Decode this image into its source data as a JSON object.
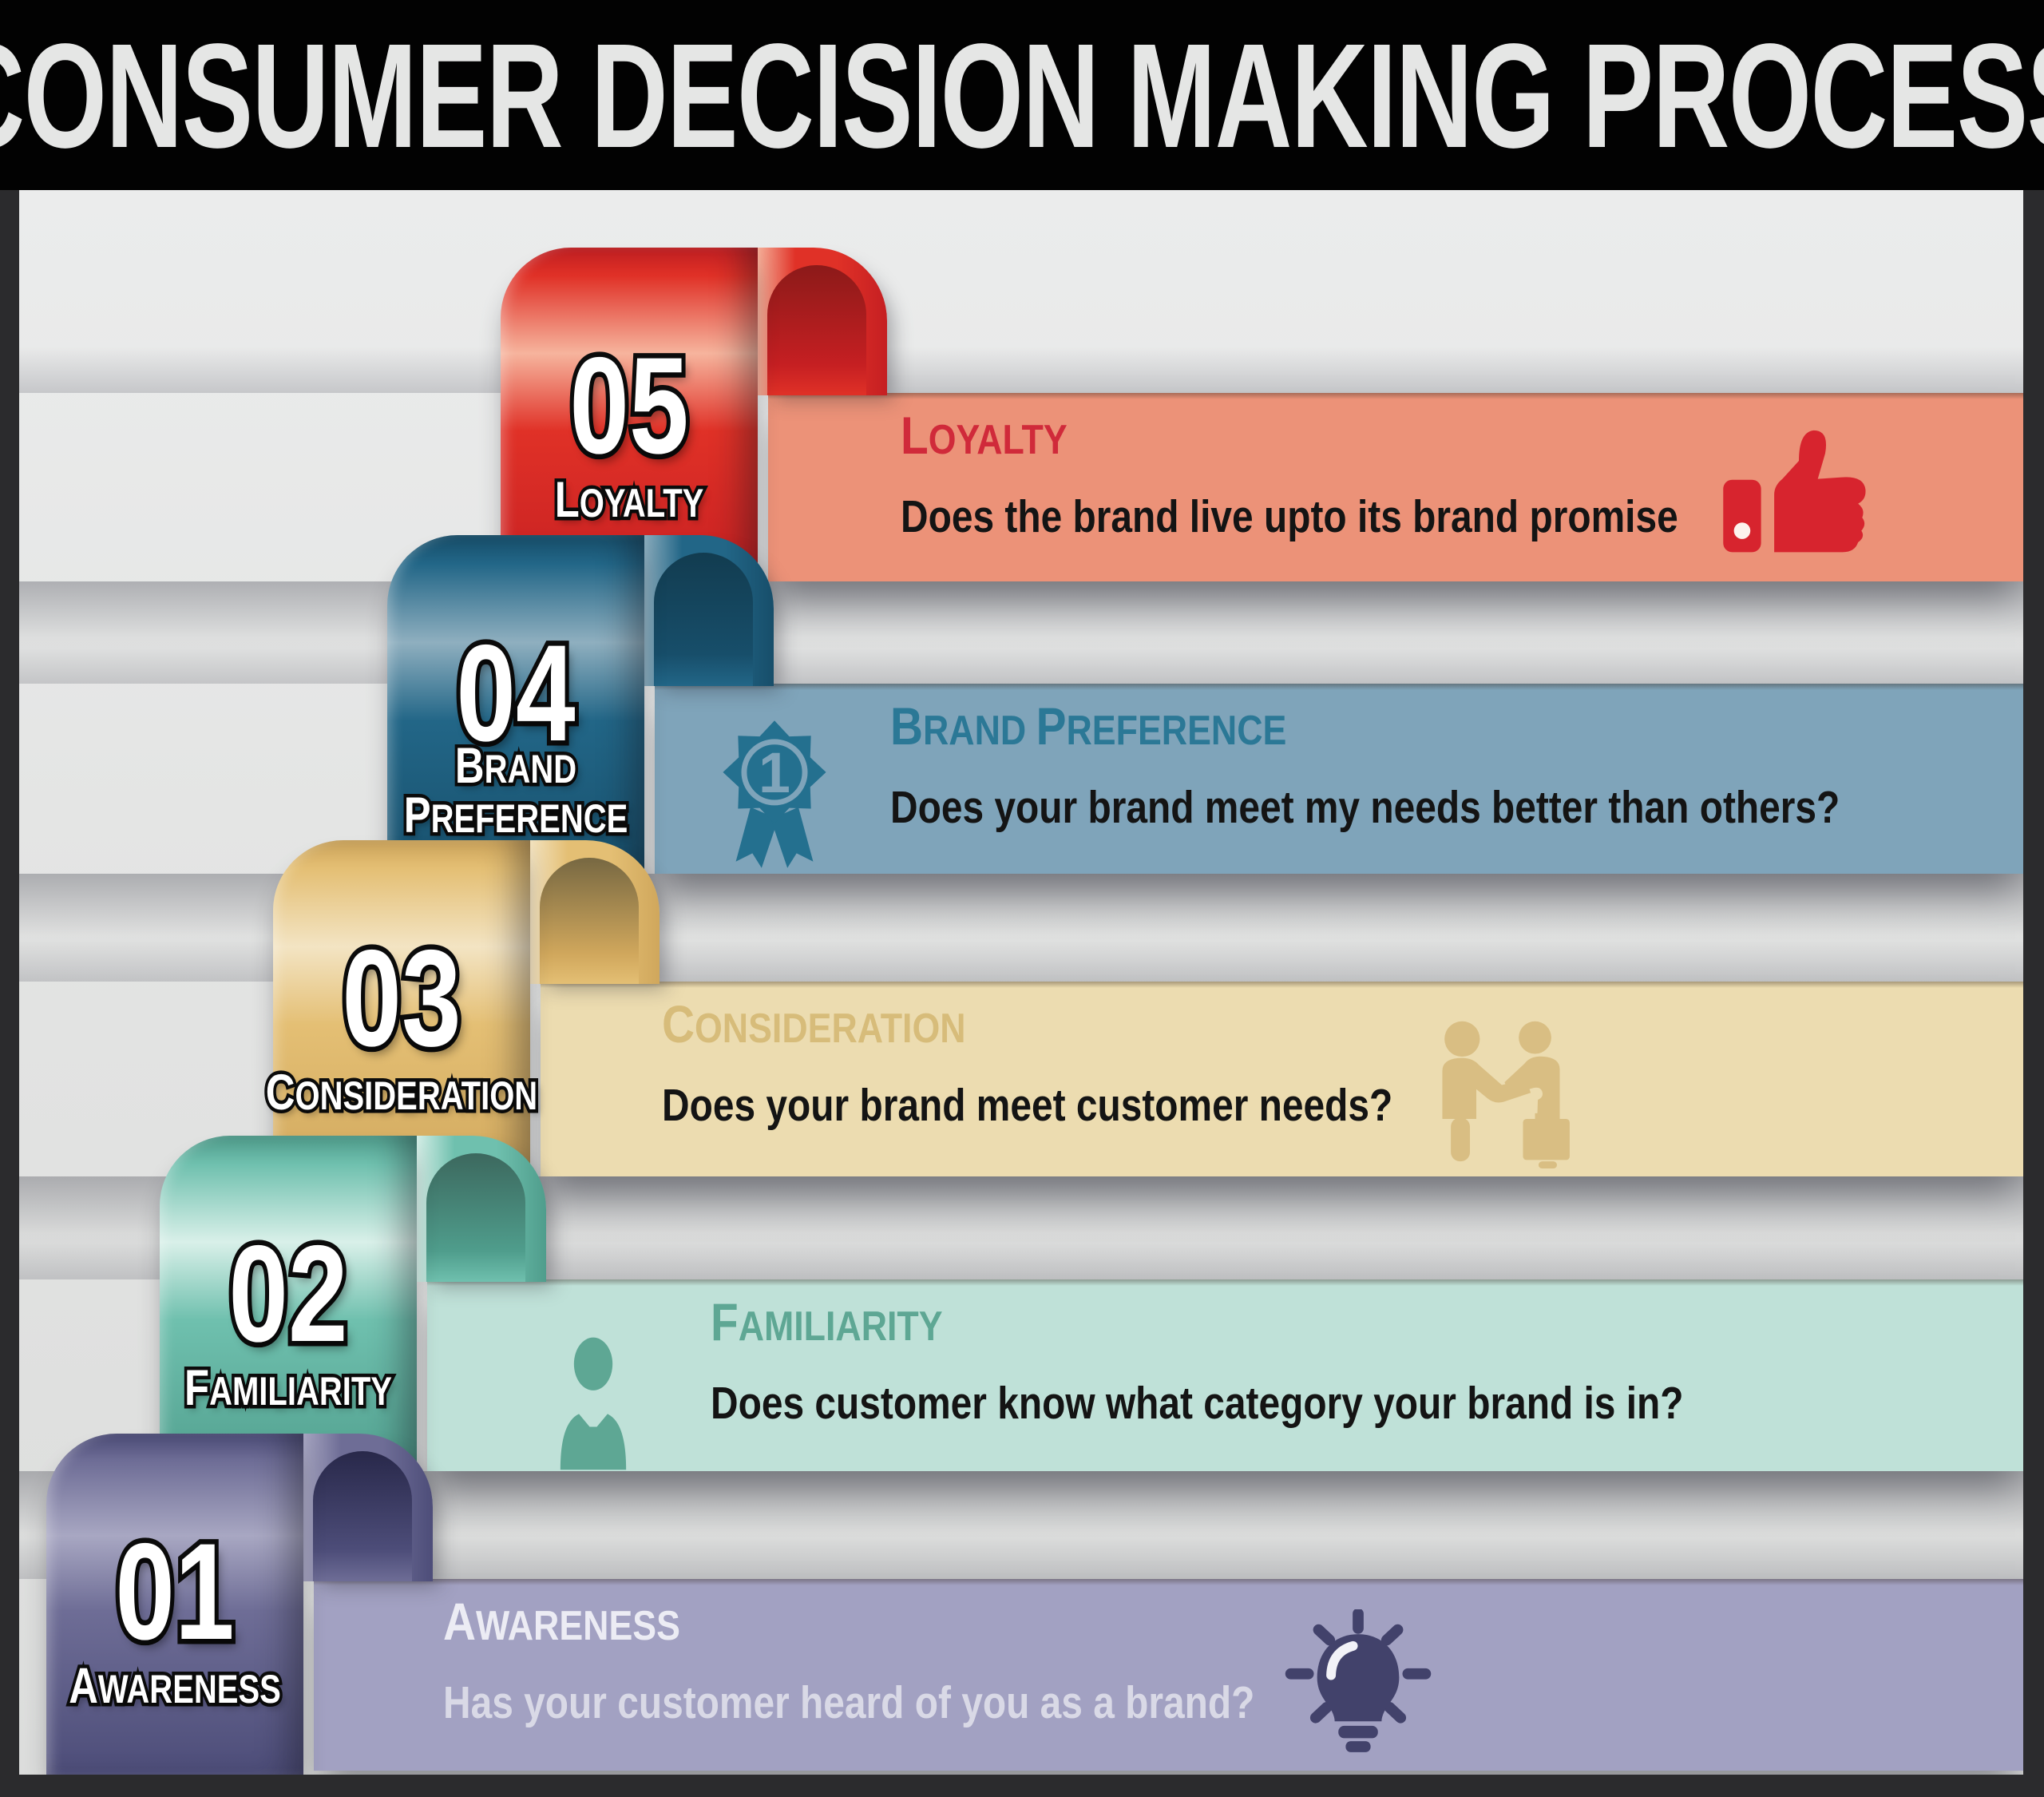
{
  "header": {
    "title": "Consumer Decision Making Process"
  },
  "frame": {
    "bar_color": "#020202",
    "border_color": "#2b2b2d",
    "background": "#e3e4e3"
  },
  "steps": [
    {
      "number": "01",
      "tab_label": "Awareness",
      "title": "Awareness",
      "description": "Has your customer heard of you as a brand?",
      "icon": "lightbulb-icon",
      "colors": {
        "main": "#6e6d96",
        "light": "#a8a7c2",
        "deep": "#4d4d79",
        "dark": "#28284a",
        "banner": "#a2a1c2",
        "title": "#ececf4",
        "subtitle": "#d9d9e6",
        "icon": "#42426b"
      }
    },
    {
      "number": "02",
      "tab_label": "Familiarity",
      "title": "Familiarity",
      "description": "Does customer know what category your brand is in?",
      "icon": "person-icon",
      "colors": {
        "main": "#6fc0ae",
        "light": "#d9f0e9",
        "deep": "#4f9d8c",
        "dark": "#3c685e",
        "banner": "#bfe1d8",
        "title": "#5ea794",
        "subtitle": "#141414",
        "icon": "#5ea794"
      }
    },
    {
      "number": "03",
      "tab_label": "Consideration",
      "title": "Consideration",
      "description": "Does your brand meet customer needs?",
      "icon": "handshake-icon",
      "colors": {
        "main": "#e4bf74",
        "light": "#f3e4c3",
        "deep": "#d0a75c",
        "dark": "#776842",
        "banner": "#ecdcb0",
        "title": "#d7bc7a",
        "subtitle": "#141414",
        "icon": "#d9be83"
      }
    },
    {
      "number": "04",
      "tab_label": "Brand\nPreference",
      "title": "Brand Preference",
      "description": "Does your brand meet my needs better than others?",
      "icon": "medal-icon",
      "colors": {
        "main": "#226687",
        "light": "#8fafbf",
        "deep": "#174e6a",
        "dark": "#123c50",
        "banner": "#7fa4ba",
        "title": "#2b7896",
        "subtitle": "#141414",
        "icon": "#24708f"
      }
    },
    {
      "number": "05",
      "tab_label": "Loyalty",
      "title": "Loyalty",
      "description": "Does the brand live upto its brand promise",
      "icon": "thumbs-up-icon",
      "colors": {
        "main": "#e03127",
        "light": "#f6b49d",
        "deep": "#c51f22",
        "dark": "#8c1a19",
        "banner": "#ec9278",
        "title": "#d02a3a",
        "subtitle": "#141414",
        "icon": "#d7242e"
      }
    }
  ]
}
